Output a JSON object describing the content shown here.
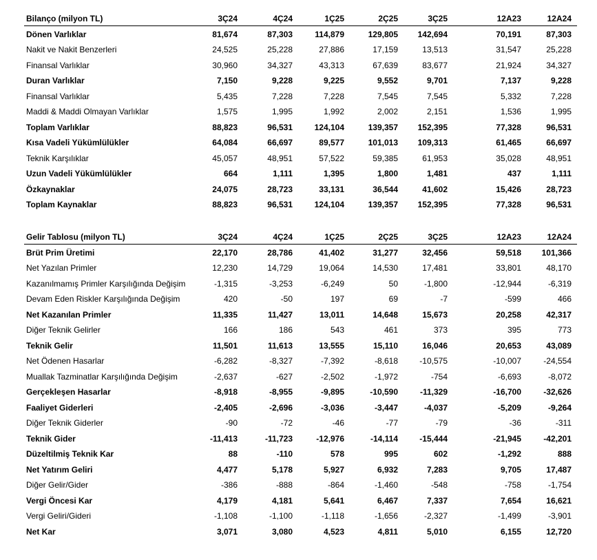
{
  "tables": [
    {
      "header": [
        "Bilanço (milyon TL)",
        "3Ç24",
        "4Ç24",
        "1Ç25",
        "2Ç25",
        "3Ç25",
        "12A23",
        "12A24"
      ],
      "rows": [
        {
          "label": "Dönen Varlıklar",
          "bold": true,
          "values": [
            "81,674",
            "87,303",
            "114,879",
            "129,805",
            "142,694",
            "70,191",
            "87,303"
          ]
        },
        {
          "label": "Nakit ve Nakit Benzerleri",
          "bold": false,
          "values": [
            "24,525",
            "25,228",
            "27,886",
            "17,159",
            "13,513",
            "31,547",
            "25,228"
          ]
        },
        {
          "label": "Finansal Varlıklar",
          "bold": false,
          "values": [
            "30,960",
            "34,327",
            "43,313",
            "67,639",
            "83,677",
            "21,924",
            "34,327"
          ]
        },
        {
          "label": "Duran Varlıklar",
          "bold": true,
          "values": [
            "7,150",
            "9,228",
            "9,225",
            "9,552",
            "9,701",
            "7,137",
            "9,228"
          ]
        },
        {
          "label": "Finansal Varlıklar",
          "bold": false,
          "values": [
            "5,435",
            "7,228",
            "7,228",
            "7,545",
            "7,545",
            "5,332",
            "7,228"
          ]
        },
        {
          "label": "Maddi & Maddi Olmayan Varlıklar",
          "bold": false,
          "values": [
            "1,575",
            "1,995",
            "1,992",
            "2,002",
            "2,151",
            "1,536",
            "1,995"
          ]
        },
        {
          "label": "Toplam Varlıklar",
          "bold": true,
          "values": [
            "88,823",
            "96,531",
            "124,104",
            "139,357",
            "152,395",
            "77,328",
            "96,531"
          ]
        },
        {
          "label": "Kısa Vadeli Yükümlülükler",
          "bold": true,
          "values": [
            "64,084",
            "66,697",
            "89,577",
            "101,013",
            "109,313",
            "61,465",
            "66,697"
          ]
        },
        {
          "label": "Teknik Karşılıklar",
          "bold": false,
          "values": [
            "45,057",
            "48,951",
            "57,522",
            "59,385",
            "61,953",
            "35,028",
            "48,951"
          ]
        },
        {
          "label": "Uzun Vadeli Yükümlülükler",
          "bold": true,
          "values": [
            "664",
            "1,111",
            "1,395",
            "1,800",
            "1,481",
            "437",
            "1,111"
          ]
        },
        {
          "label": "Özkaynaklar",
          "bold": true,
          "values": [
            "24,075",
            "28,723",
            "33,131",
            "36,544",
            "41,602",
            "15,426",
            "28,723"
          ]
        },
        {
          "label": "Toplam Kaynaklar",
          "bold": true,
          "values": [
            "88,823",
            "96,531",
            "124,104",
            "139,357",
            "152,395",
            "77,328",
            "96,531"
          ]
        }
      ]
    },
    {
      "header": [
        "Gelir Tablosu (milyon TL)",
        "3Ç24",
        "4Ç24",
        "1Ç25",
        "2Ç25",
        "3Ç25",
        "12A23",
        "12A24"
      ],
      "rows": [
        {
          "label": "Brüt Prim Üretimi",
          "bold": true,
          "values": [
            "22,170",
            "28,786",
            "41,402",
            "31,277",
            "32,456",
            "59,518",
            "101,366"
          ]
        },
        {
          "label": "Net Yazılan Primler",
          "bold": false,
          "values": [
            "12,230",
            "14,729",
            "19,064",
            "14,530",
            "17,481",
            "33,801",
            "48,170"
          ]
        },
        {
          "label": "Kazanılmamış Primler Karşılığında Değişim",
          "bold": false,
          "values": [
            "-1,315",
            "-3,253",
            "-6,249",
            "50",
            "-1,800",
            "-12,944",
            "-6,319"
          ]
        },
        {
          "label": "Devam Eden Riskler Karşılığında Değişim",
          "bold": false,
          "values": [
            "420",
            "-50",
            "197",
            "69",
            "-7",
            "-599",
            "466"
          ]
        },
        {
          "label": "Net Kazanılan Primler",
          "bold": true,
          "values": [
            "11,335",
            "11,427",
            "13,011",
            "14,648",
            "15,673",
            "20,258",
            "42,317"
          ]
        },
        {
          "label": "Diğer Teknik Gelirler",
          "bold": false,
          "values": [
            "166",
            "186",
            "543",
            "461",
            "373",
            "395",
            "773"
          ]
        },
        {
          "label": "Teknik Gelir",
          "bold": true,
          "values": [
            "11,501",
            "11,613",
            "13,555",
            "15,110",
            "16,046",
            "20,653",
            "43,089"
          ]
        },
        {
          "label": "Net Ödenen Hasarlar",
          "bold": false,
          "values": [
            "-6,282",
            "-8,327",
            "-7,392",
            "-8,618",
            "-10,575",
            "-10,007",
            "-24,554"
          ]
        },
        {
          "label": "Muallak Tazminatlar Karşılığında Değişim",
          "bold": false,
          "values": [
            "-2,637",
            "-627",
            "-2,502",
            "-1,972",
            "-754",
            "-6,693",
            "-8,072"
          ]
        },
        {
          "label": "Gerçekleşen Hasarlar",
          "bold": true,
          "values": [
            "-8,918",
            "-8,955",
            "-9,895",
            "-10,590",
            "-11,329",
            "-16,700",
            "-32,626"
          ]
        },
        {
          "label": "Faaliyet Giderleri",
          "bold": true,
          "values": [
            "-2,405",
            "-2,696",
            "-3,036",
            "-3,447",
            "-4,037",
            "-5,209",
            "-9,264"
          ]
        },
        {
          "label": "Diğer Teknik Giderler",
          "bold": false,
          "values": [
            "-90",
            "-72",
            "-46",
            "-77",
            "-79",
            "-36",
            "-311"
          ]
        },
        {
          "label": "Teknik Gider",
          "bold": true,
          "values": [
            "-11,413",
            "-11,723",
            "-12,976",
            "-14,114",
            "-15,444",
            "-21,945",
            "-42,201"
          ]
        },
        {
          "label": "Düzeltilmiş Teknik Kar",
          "bold": true,
          "values": [
            "88",
            "-110",
            "578",
            "995",
            "602",
            "-1,292",
            "888"
          ]
        },
        {
          "label": "Net Yatırım Geliri",
          "bold": true,
          "values": [
            "4,477",
            "5,178",
            "5,927",
            "6,932",
            "7,283",
            "9,705",
            "17,487"
          ]
        },
        {
          "label": "Diğer Gelir/Gider",
          "bold": false,
          "values": [
            "-386",
            "-888",
            "-864",
            "-1,460",
            "-548",
            "-758",
            "-1,754"
          ]
        },
        {
          "label": "Vergi Öncesi Kar",
          "bold": true,
          "values": [
            "4,179",
            "4,181",
            "5,641",
            "6,467",
            "7,337",
            "7,654",
            "16,621"
          ]
        },
        {
          "label": "Vergi Geliri/Gideri",
          "bold": false,
          "values": [
            "-1,108",
            "-1,100",
            "-1,118",
            "-1,656",
            "-2,327",
            "-1,499",
            "-3,901"
          ]
        },
        {
          "label": "Net Kar",
          "bold": true,
          "values": [
            "3,071",
            "3,080",
            "4,523",
            "4,811",
            "5,010",
            "6,155",
            "12,720"
          ]
        }
      ]
    }
  ]
}
